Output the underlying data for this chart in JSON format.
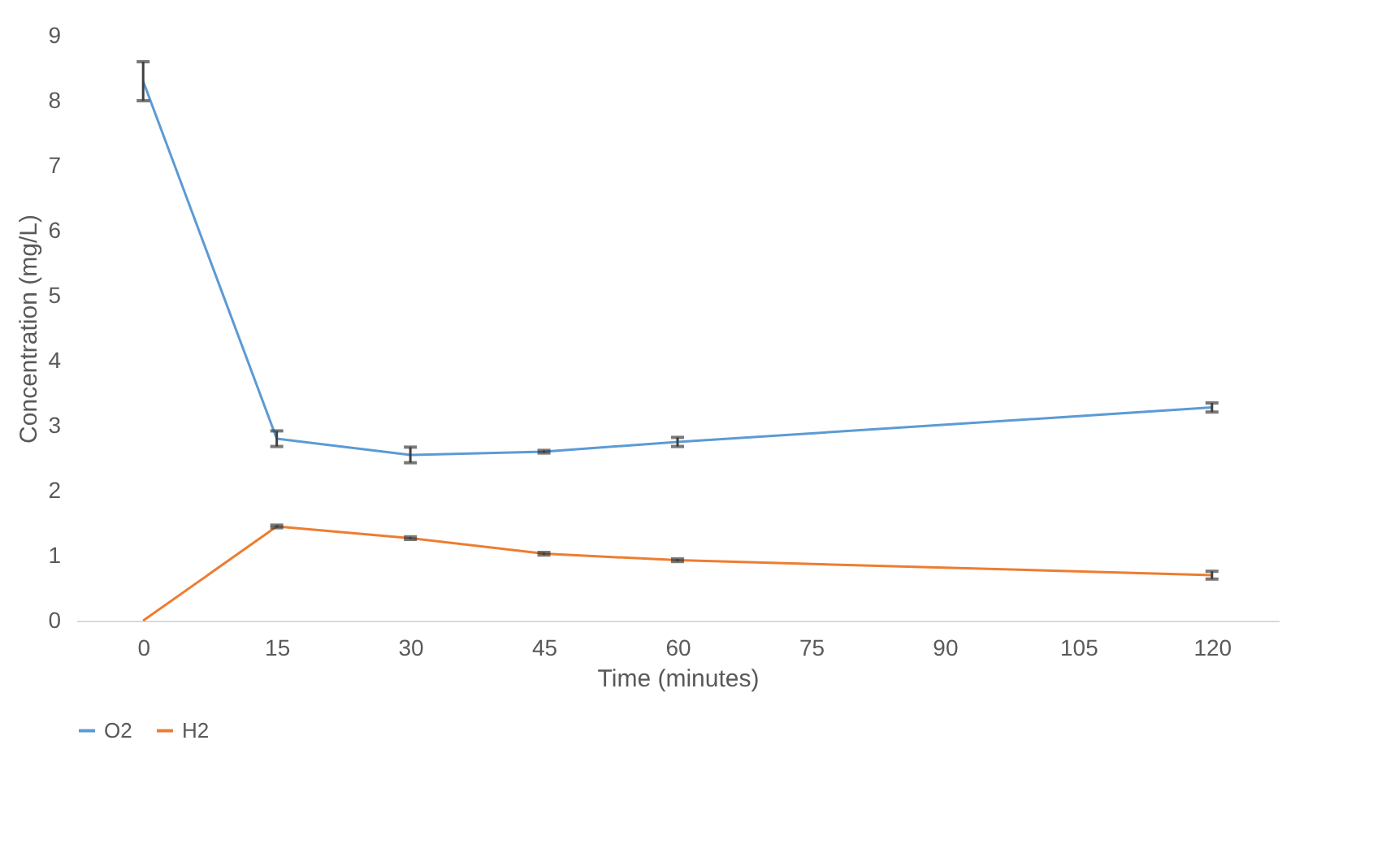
{
  "chart_data": {
    "type": "line",
    "xlabel": "Time (minutes)",
    "ylabel": "Concentration (mg/L)",
    "x": [
      0,
      15,
      30,
      45,
      60,
      120
    ],
    "xlim": [
      -7.5,
      127.5
    ],
    "xticks": [
      0,
      15,
      30,
      45,
      60,
      75,
      90,
      105,
      120
    ],
    "ylim": [
      0,
      9
    ],
    "yticks": [
      0,
      1,
      2,
      3,
      4,
      5,
      6,
      7,
      8,
      9
    ],
    "grid": false,
    "legend": "bottom",
    "marker": "none",
    "line_style": "solid",
    "series": [
      {
        "name": "O2",
        "color": "#5b9bd5",
        "values": [
          8.3,
          2.8,
          2.55,
          2.6,
          2.75,
          3.28
        ],
        "errors": [
          [
            8.0,
            8.6
          ],
          0.12,
          0.12,
          0.02,
          0.07,
          0.07
        ]
      },
      {
        "name": "H2",
        "color": "#ed7d31",
        "values": [
          0,
          1.45,
          1.27,
          1.03,
          0.93,
          0.7
        ],
        "errors": [
          null,
          0.02,
          0.02,
          0.02,
          0.02,
          0.06
        ]
      }
    ]
  }
}
